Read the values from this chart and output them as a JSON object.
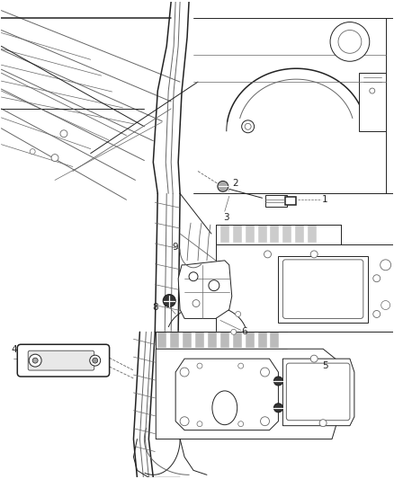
{
  "bg_color": "#ffffff",
  "line_color": "#666666",
  "dark_line": "#222222",
  "med_line": "#444444",
  "label_color": "#222222",
  "label_fontsize": 7.5,
  "fig_width": 4.38,
  "fig_height": 5.33,
  "dpi": 100
}
